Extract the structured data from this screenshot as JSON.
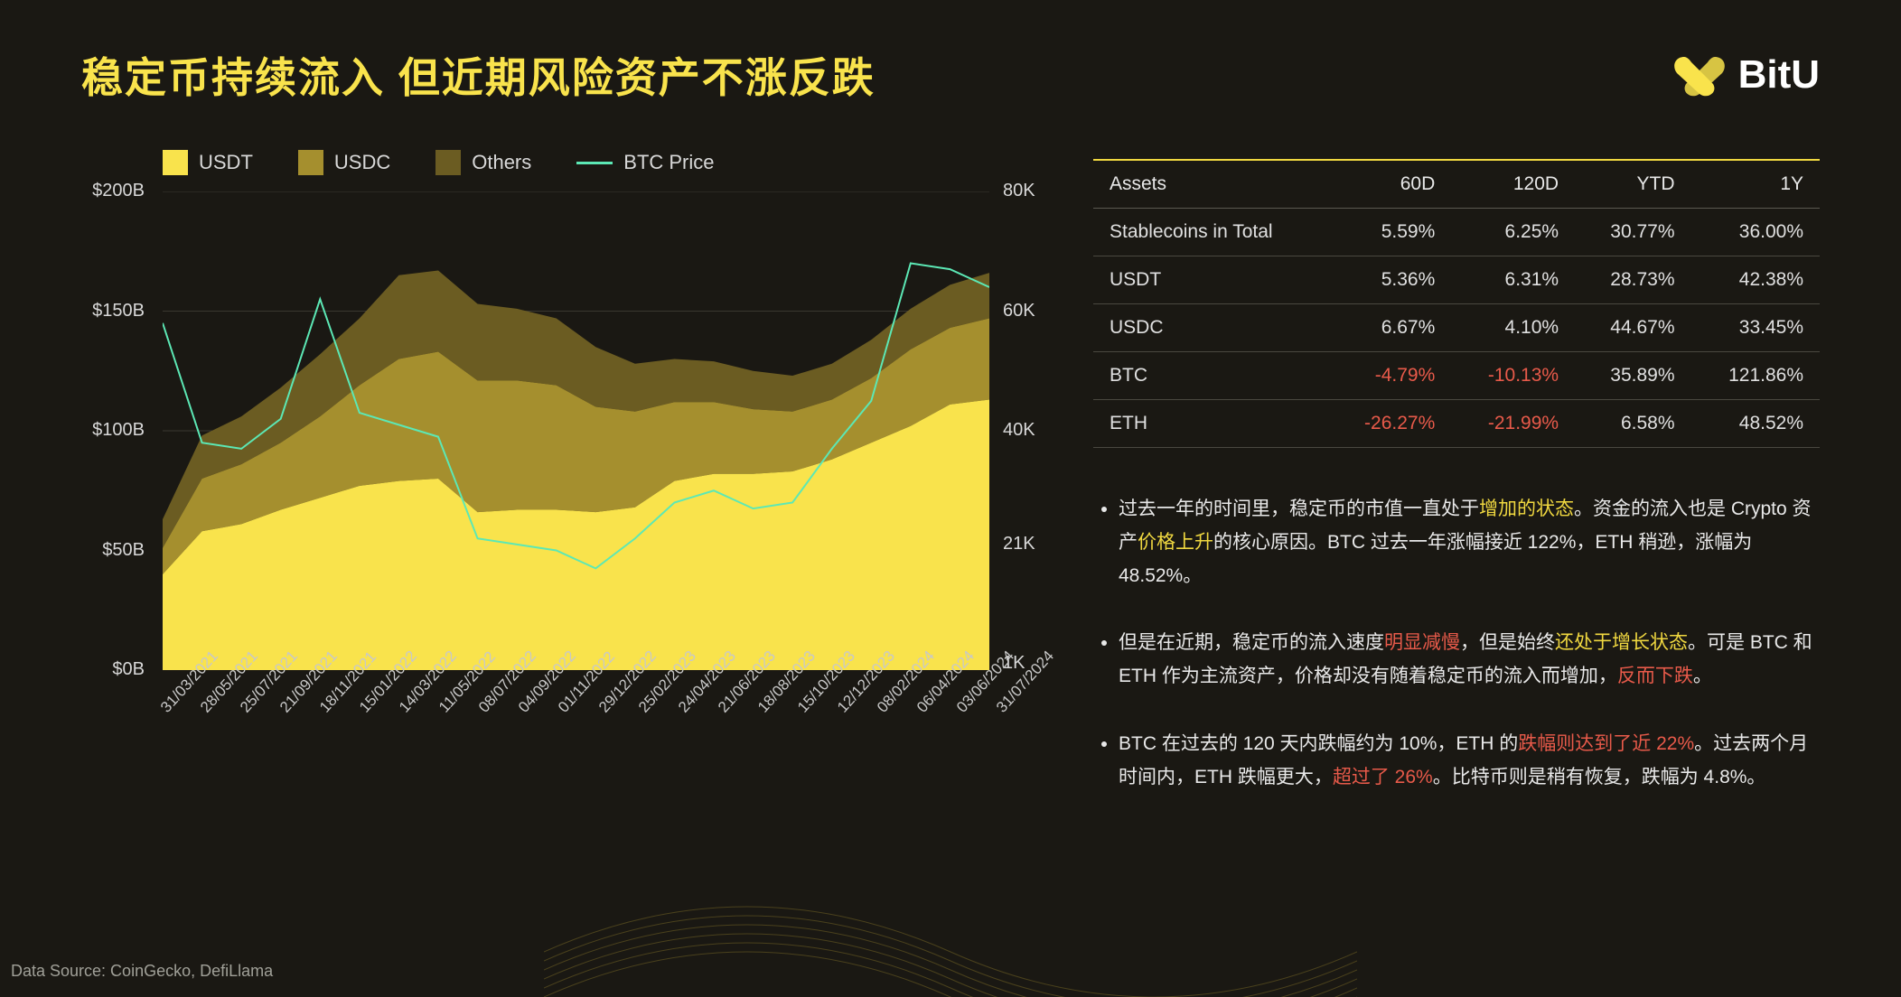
{
  "title": "稳定币持续流入 但近期风险资产不涨反跌",
  "brand": "BitU",
  "brand_color": "#f9e34c",
  "legend": {
    "usdt": {
      "label": "USDT",
      "color": "#f9e34c"
    },
    "usdc": {
      "label": "USDC",
      "color": "#a58f2e"
    },
    "others": {
      "label": "Others",
      "color": "#6b5c22"
    },
    "btc": {
      "label": "BTC Price",
      "color": "#5ce8b5"
    }
  },
  "chart": {
    "type": "stacked-area+line",
    "background_color": "#1a1813",
    "grid_color": "#3a3830",
    "line_width": 2,
    "y_left": {
      "ticks": [
        {
          "v": 0,
          "label": "$0B"
        },
        {
          "v": 50,
          "label": "$50B"
        },
        {
          "v": 100,
          "label": "$100B"
        },
        {
          "v": 150,
          "label": "$150B"
        },
        {
          "v": 200,
          "label": "$200B"
        }
      ],
      "min": 0,
      "max": 200
    },
    "y_right": {
      "ticks": [
        {
          "v": 1,
          "label": "1K"
        },
        {
          "v": 21,
          "label": "21K"
        },
        {
          "v": 40,
          "label": "40K"
        },
        {
          "v": 60,
          "label": "60K"
        },
        {
          "v": 80,
          "label": "80K"
        }
      ],
      "min": 0,
      "max": 80
    },
    "x_dates": [
      "31/03/2021",
      "28/05/2021",
      "25/07/2021",
      "21/09/2021",
      "18/11/2021",
      "15/01/2022",
      "14/03/2022",
      "11/05/2022",
      "08/07/2022",
      "04/09/2022",
      "01/11/2022",
      "29/12/2022",
      "25/02/2023",
      "24/04/2023",
      "21/06/2023",
      "18/08/2023",
      "15/10/2023",
      "12/12/2023",
      "08/02/2024",
      "06/04/2024",
      "03/06/2024",
      "31/07/2024"
    ],
    "usdt": [
      40,
      58,
      61,
      67,
      72,
      77,
      79,
      80,
      66,
      67,
      67,
      66,
      68,
      79,
      82,
      82,
      83,
      88,
      95,
      102,
      111,
      113
    ],
    "usdc": [
      11,
      22,
      25,
      28,
      34,
      42,
      51,
      53,
      55,
      54,
      52,
      44,
      40,
      33,
      30,
      27,
      25,
      25,
      27,
      32,
      32,
      34
    ],
    "others": [
      12,
      18,
      20,
      23,
      26,
      28,
      35,
      34,
      32,
      30,
      28,
      25,
      20,
      18,
      17,
      16,
      15,
      15,
      16,
      17,
      18,
      19
    ],
    "btc": [
      58,
      38,
      37,
      42,
      62,
      43,
      41,
      39,
      22,
      21,
      20,
      17,
      22,
      28,
      30,
      27,
      28,
      37,
      45,
      68,
      67,
      64
    ]
  },
  "table": {
    "headers": [
      "Assets",
      "60D",
      "120D",
      "YTD",
      "1Y"
    ],
    "rows": [
      {
        "cells": [
          "Stablecoins in Total",
          "5.59%",
          "6.25%",
          "30.77%",
          "36.00%"
        ],
        "neg": []
      },
      {
        "cells": [
          "USDT",
          "5.36%",
          "6.31%",
          "28.73%",
          "42.38%"
        ],
        "neg": []
      },
      {
        "cells": [
          "USDC",
          "6.67%",
          "4.10%",
          "44.67%",
          "33.45%"
        ],
        "neg": []
      },
      {
        "cells": [
          "BTC",
          "-4.79%",
          "-10.13%",
          "35.89%",
          "121.86%"
        ],
        "neg": [
          1,
          2
        ]
      },
      {
        "cells": [
          "ETH",
          "-26.27%",
          "-21.99%",
          "6.58%",
          "48.52%"
        ],
        "neg": [
          1,
          2
        ]
      }
    ]
  },
  "bullets": [
    [
      {
        "t": "过去一年的时间里，稳定币的市值一直处于"
      },
      {
        "t": "增加的状态",
        "c": "y"
      },
      {
        "t": "。资金的流入也是 Crypto 资产"
      },
      {
        "t": "价格上升",
        "c": "y"
      },
      {
        "t": "的核心原因。BTC 过去一年涨幅接近 122%，ETH 稍逊，涨幅为 48.52%。"
      }
    ],
    [
      {
        "t": "但是在近期，稳定币的流入速度"
      },
      {
        "t": "明显减慢",
        "c": "r"
      },
      {
        "t": "，但是始终"
      },
      {
        "t": "还处于增长状态",
        "c": "y"
      },
      {
        "t": "。可是 BTC 和 ETH 作为主流资产，价格却没有随着稳定币的流入而增加，"
      },
      {
        "t": "反而下跌",
        "c": "r"
      },
      {
        "t": "。"
      }
    ],
    [
      {
        "t": "BTC 在过去的 120 天内跌幅约为 10%，ETH 的"
      },
      {
        "t": "跌幅则达到了近 22%",
        "c": "r"
      },
      {
        "t": "。过去两个月时间内，ETH 跌幅更大，"
      },
      {
        "t": "超过了 26%",
        "c": "r"
      },
      {
        "t": "。比特币则是稍有恢复，跌幅为 4.8%。"
      }
    ]
  ],
  "footer": "Data Source: CoinGecko, DefiLlama"
}
